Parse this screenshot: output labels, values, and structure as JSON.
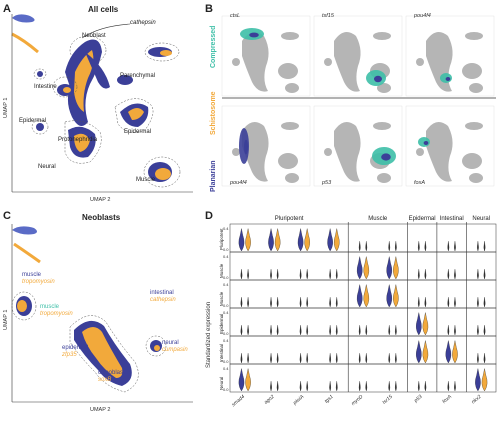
{
  "colors": {
    "blue": "#3b3f98",
    "orange": "#f2a93b",
    "teal": "#3dbfa7",
    "grey": "#b5b5b5"
  },
  "panelA": {
    "label": "A",
    "title": "All cells",
    "xlabel": "UMAP 2",
    "ylabel": "UMAP 1",
    "clusters": [
      "cathepsin",
      "Neoblast",
      "Parenchymal",
      "Intestine",
      "Epidermal",
      "Epidermal",
      "Protonephridia",
      "Neural",
      "Muscle"
    ]
  },
  "panelB": {
    "label": "B",
    "row_labels": [
      "Compressed",
      "Schistosome",
      "Planarian"
    ],
    "genes_top": [
      "ctsL",
      "tsf15",
      "pou4f4"
    ],
    "genes_bottom": [
      "pou4f4",
      "p53",
      "foxA"
    ]
  },
  "panelC": {
    "label": "C",
    "title": "Neoblasts",
    "xlabel": "UMAP 2",
    "ylabel": "UMAP 1",
    "labels": [
      {
        "t": "muscle",
        "c": "blue"
      },
      {
        "t": "tropomyosin",
        "c": "orange"
      },
      {
        "t": "muscle",
        "c": "teal"
      },
      {
        "t": "tropomyosin",
        "c": "orange"
      },
      {
        "t": "intestinal",
        "c": "blue"
      },
      {
        "t": "cathepsin",
        "c": "orange"
      },
      {
        "t": "neural",
        "c": "blue"
      },
      {
        "t": "cumpasin",
        "c": "orange"
      },
      {
        "t": "epidermal",
        "c": "blue"
      },
      {
        "t": "zfp35",
        "c": "orange"
      },
      {
        "t": "cNeoblast",
        "c": "blue"
      },
      {
        "t": "soxB",
        "c": "orange"
      }
    ]
  },
  "panelD": {
    "label": "D",
    "ylabel": "Standardized expression",
    "groups": [
      "Pluripotent",
      "Muscle",
      "Epidermal",
      "Intestinal",
      "Neural"
    ],
    "genes": [
      "smad4",
      "ago2",
      "piwiA",
      "tgs1",
      "myoD",
      "tsr15",
      "p53",
      "foxA",
      "nkx2"
    ],
    "rows": [
      "Pluripotent",
      "Muscle",
      "Muscle",
      "Epidermal",
      "Intestinal",
      "Neural"
    ],
    "ytick_max": "0.4",
    "ytick_min": "0.0"
  }
}
